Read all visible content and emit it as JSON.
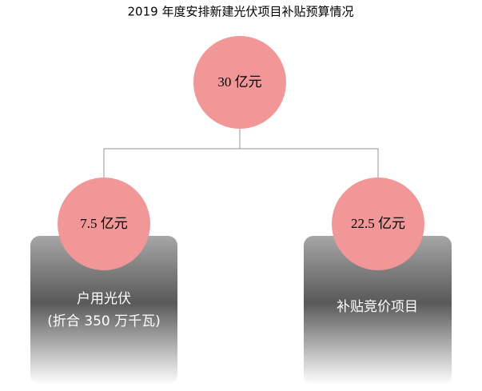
{
  "title": "2019 年度安排新建光伏项目补贴预算情况",
  "nodes": [
    {
      "label": "30 亿元"
    },
    {
      "label": "7.5 亿元",
      "lines": [
        "户用光伏",
        "(折合 350 万千瓦)"
      ]
    },
    {
      "label": "22.5 亿元",
      "lines": [
        "补贴竞价项目"
      ]
    }
  ]
}
